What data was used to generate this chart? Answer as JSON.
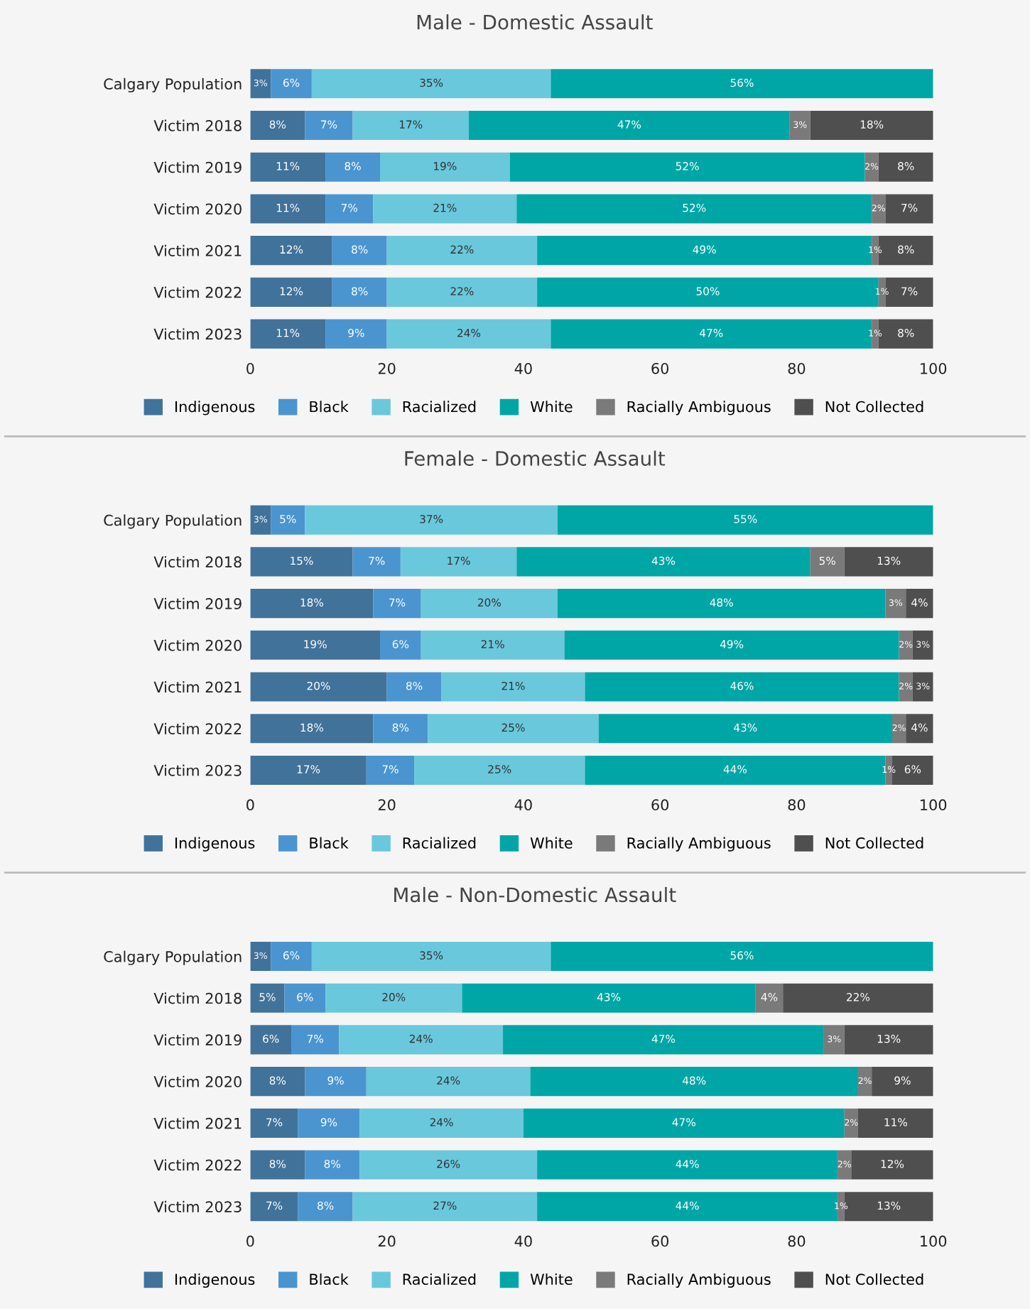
{
  "chart_data": [
    {
      "type": "bar",
      "orientation": "horizontal",
      "stacked": true,
      "title": "Male - Domestic Assault",
      "legend": "bottom",
      "grid": false,
      "xlim": [
        0,
        100
      ],
      "xticks": [
        0,
        20,
        40,
        60,
        80,
        100
      ],
      "categories": [
        "Calgary Population",
        "Victim 2018",
        "Victim 2019",
        "Victim 2020",
        "Victim 2021",
        "Victim 2022",
        "Victim 2023"
      ],
      "series": [
        {
          "name": "Indigenous",
          "color": "#41729a",
          "values": [
            3,
            8,
            11,
            11,
            12,
            12,
            11
          ],
          "value_labels": [
            "3%",
            "8%",
            "11%",
            "11%",
            "12%",
            "12%",
            "11%"
          ]
        },
        {
          "name": "Black",
          "color": "#4a95d0",
          "values": [
            6,
            7,
            8,
            7,
            8,
            8,
            9
          ],
          "value_labels": [
            "6%",
            "7%",
            "8%",
            "7%",
            "8%",
            "8%",
            "9%"
          ]
        },
        {
          "name": "Racialized",
          "color": "#69c8dc",
          "values": [
            35,
            17,
            19,
            21,
            22,
            22,
            24
          ],
          "value_labels": [
            "35%",
            "17%",
            "19%",
            "21%",
            "22%",
            "22%",
            "24%"
          ]
        },
        {
          "name": "White",
          "color": "#00a6a6",
          "values": [
            56,
            47,
            52,
            52,
            49,
            50,
            47
          ],
          "value_labels": [
            "56%",
            "47%",
            "52%",
            "52%",
            "49%",
            "50%",
            "47%"
          ]
        },
        {
          "name": "Racially Ambiguous",
          "color": "#7a7a7a",
          "values": [
            null,
            3,
            2,
            2,
            1,
            1,
            1
          ],
          "value_labels": [
            null,
            "3%",
            "2%",
            "2%",
            "1%",
            "1%",
            "1%"
          ]
        },
        {
          "name": "Not Collected",
          "color": "#4f4f4f",
          "values": [
            null,
            18,
            8,
            7,
            8,
            7,
            8
          ],
          "value_labels": [
            null,
            "18%",
            "8%",
            "7%",
            "8%",
            "7%",
            "8%"
          ]
        }
      ]
    },
    {
      "type": "bar",
      "orientation": "horizontal",
      "stacked": true,
      "title": "Female - Domestic Assault",
      "legend": "bottom",
      "grid": false,
      "xlim": [
        0,
        100
      ],
      "xticks": [
        0,
        20,
        40,
        60,
        80,
        100
      ],
      "categories": [
        "Calgary Population",
        "Victim 2018",
        "Victim 2019",
        "Victim 2020",
        "Victim 2021",
        "Victim 2022",
        "Victim 2023"
      ],
      "series": [
        {
          "name": "Indigenous",
          "color": "#41729a",
          "values": [
            3,
            15,
            18,
            19,
            20,
            18,
            17
          ],
          "value_labels": [
            "3%",
            "15%",
            "18%",
            "19%",
            "20%",
            "18%",
            "17%"
          ]
        },
        {
          "name": "Black",
          "color": "#4a95d0",
          "values": [
            5,
            7,
            7,
            6,
            8,
            8,
            7
          ],
          "value_labels": [
            "5%",
            "7%",
            "7%",
            "6%",
            "8%",
            "8%",
            "7%"
          ]
        },
        {
          "name": "Racialized",
          "color": "#69c8dc",
          "values": [
            37,
            17,
            20,
            21,
            21,
            25,
            25
          ],
          "value_labels": [
            "37%",
            "17%",
            "20%",
            "21%",
            "21%",
            "25%",
            "25%"
          ]
        },
        {
          "name": "White",
          "color": "#00a6a6",
          "values": [
            55,
            43,
            48,
            49,
            46,
            43,
            44
          ],
          "value_labels": [
            "55%",
            "43%",
            "48%",
            "49%",
            "46%",
            "43%",
            "44%"
          ]
        },
        {
          "name": "Racially Ambiguous",
          "color": "#7a7a7a",
          "values": [
            null,
            5,
            3,
            2,
            2,
            2,
            1
          ],
          "value_labels": [
            null,
            "5%",
            "3%",
            "2%",
            "2%",
            "2%",
            "1%"
          ]
        },
        {
          "name": "Not Collected",
          "color": "#4f4f4f",
          "values": [
            null,
            13,
            4,
            3,
            3,
            4,
            6
          ],
          "value_labels": [
            null,
            "13%",
            "4%",
            "3%",
            "3%",
            "4%",
            "6%"
          ]
        }
      ]
    },
    {
      "type": "bar",
      "orientation": "horizontal",
      "stacked": true,
      "title": "Male - Non-Domestic Assault",
      "legend": "bottom",
      "grid": false,
      "xlim": [
        0,
        100
      ],
      "xticks": [
        0,
        20,
        40,
        60,
        80,
        100
      ],
      "categories": [
        "Calgary Population",
        "Victim 2018",
        "Victim 2019",
        "Victim 2020",
        "Victim 2021",
        "Victim 2022",
        "Victim 2023"
      ],
      "series": [
        {
          "name": "Indigenous",
          "color": "#41729a",
          "values": [
            3,
            5,
            6,
            8,
            7,
            8,
            7
          ],
          "value_labels": [
            "3%",
            "5%",
            "6%",
            "8%",
            "7%",
            "8%",
            "7%"
          ]
        },
        {
          "name": "Black",
          "color": "#4a95d0",
          "values": [
            6,
            6,
            7,
            9,
            9,
            8,
            8
          ],
          "value_labels": [
            "6%",
            "6%",
            "7%",
            "9%",
            "9%",
            "8%",
            "8%"
          ]
        },
        {
          "name": "Racialized",
          "color": "#69c8dc",
          "values": [
            35,
            20,
            24,
            24,
            24,
            26,
            27
          ],
          "value_labels": [
            "35%",
            "20%",
            "24%",
            "24%",
            "24%",
            "26%",
            "27%"
          ]
        },
        {
          "name": "White",
          "color": "#00a6a6",
          "values": [
            56,
            43,
            47,
            48,
            47,
            44,
            44
          ],
          "value_labels": [
            "56%",
            "43%",
            "47%",
            "48%",
            "47%",
            "44%",
            "44%"
          ]
        },
        {
          "name": "Racially Ambiguous",
          "color": "#7a7a7a",
          "values": [
            null,
            4,
            3,
            2,
            2,
            2,
            1
          ],
          "value_labels": [
            null,
            "4%",
            "3%",
            "2%",
            "2%",
            "2%",
            "1%"
          ]
        },
        {
          "name": "Not Collected",
          "color": "#4f4f4f",
          "values": [
            null,
            22,
            13,
            9,
            11,
            12,
            13
          ],
          "value_labels": [
            null,
            "22%",
            "13%",
            "9%",
            "11%",
            "12%",
            "13%"
          ]
        }
      ]
    }
  ]
}
